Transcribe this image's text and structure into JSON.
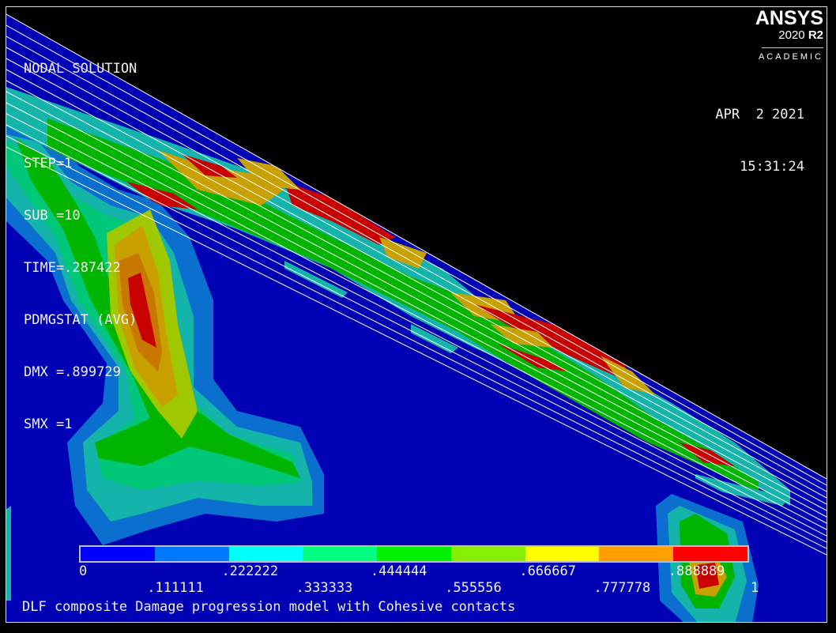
{
  "info": {
    "header": "NODAL SOLUTION",
    "lines": [
      "STEP=1",
      "SUB =10",
      "TIME=.287422",
      "PDMGSTAT (AVG)",
      "DMX =.899729",
      "SMX =1"
    ]
  },
  "logo": {
    "brand": "ANSYS",
    "version_year": "2020",
    "version_release": "R2",
    "edition": "ACADEMIC"
  },
  "date": "APR  2 2021",
  "time": "15:31:24",
  "legend": {
    "colors": [
      "#0000ff",
      "#0078ff",
      "#00ffff",
      "#00ff80",
      "#00f000",
      "#88ee00",
      "#ffff00",
      "#ffa000",
      "#ff0000"
    ],
    "labels": [
      "0",
      ".111111",
      ".222222",
      ".333333",
      ".444444",
      ".555556",
      ".666667",
      ".777778",
      ".888889",
      "1"
    ]
  },
  "plot_title": "DLF composite Damage progression model with Cohesive contacts"
}
